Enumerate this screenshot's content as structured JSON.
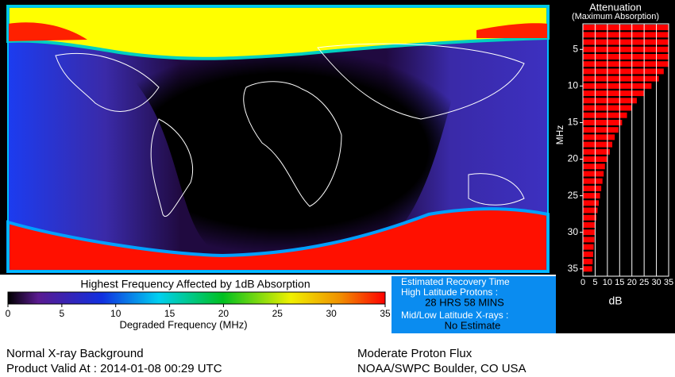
{
  "colorbar": {
    "title": "Highest Frequency Affected by 1dB Absorption",
    "ticks": [
      0,
      5,
      10,
      15,
      20,
      25,
      30,
      35
    ],
    "label": "Degraded Frequency (MHz)"
  },
  "recovery": {
    "title": "Estimated Recovery Time",
    "high_label": "High Latitude Protons :",
    "high_value": "28 HRS 58 MINS",
    "low_label": "Mid/Low Latitude X-rays :",
    "low_value": "No Estimate"
  },
  "footer": {
    "left": [
      "Normal X-ray Background",
      "Product Valid At : 2014-01-08 00:29 UTC"
    ],
    "right": [
      "Moderate Proton Flux",
      "NOAA/SWPC Boulder, CO USA"
    ]
  },
  "chart_data": {
    "type": "hbar",
    "title": "Attenuation",
    "subtitle": "(Maximum Absorption)",
    "ylabel": "MHz",
    "xlabel": "dB",
    "color": "#ff0000",
    "categories": [
      2,
      3,
      4,
      5,
      6,
      7,
      8,
      9,
      10,
      11,
      12,
      13,
      14,
      15,
      16,
      17,
      18,
      19,
      20,
      21,
      22,
      23,
      24,
      25,
      26,
      27,
      28,
      29,
      30,
      31,
      32,
      33,
      34,
      35
    ],
    "values": [
      35,
      35,
      35,
      35,
      35,
      35,
      33,
      31,
      28,
      25,
      22,
      20,
      18,
      16,
      14.5,
      13,
      12,
      11,
      10,
      9,
      8.5,
      8,
      7.5,
      7,
      6.5,
      6,
      5.5,
      5.2,
      5,
      4.7,
      4.4,
      4.2,
      4,
      3.8
    ],
    "ylim": [
      1.5,
      36
    ],
    "yticks": [
      5,
      10,
      15,
      20,
      25,
      30,
      35
    ],
    "xlim": [
      0,
      35
    ],
    "xticks": [
      0,
      5,
      10,
      15,
      20,
      25,
      30,
      35
    ],
    "grid": true
  }
}
